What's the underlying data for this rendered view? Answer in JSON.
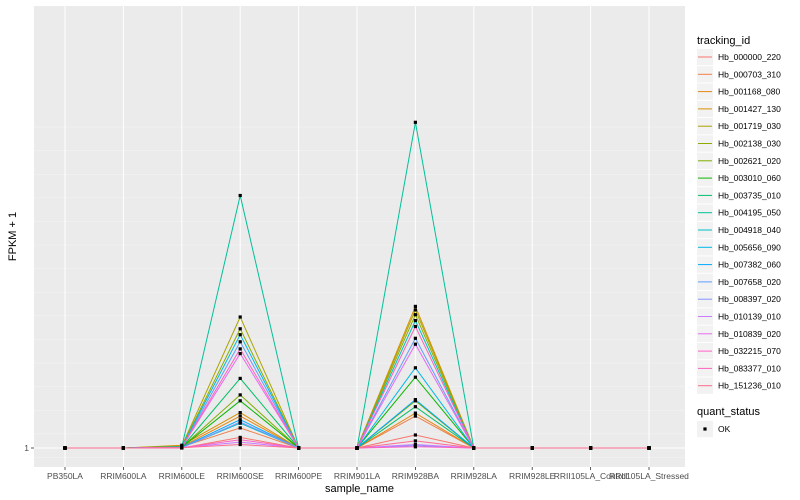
{
  "chart_data": {
    "type": "line",
    "title": "",
    "xlabel": "sample_name",
    "ylabel": "FPKM + 1",
    "y_tick_labels": [
      {
        "value": 1,
        "label": "1"
      }
    ],
    "ylim": [
      0.6,
      15.2
    ],
    "categories": [
      "PB350LA",
      "RRIM600LA",
      "RRIM600LE",
      "RRIM600SE",
      "RRIM600PE",
      "RRIM901LA",
      "RRIM928BA",
      "RRIM928LA",
      "RRIM928LE",
      "RRII105LA_Control",
      "RRII105LA_Stressed"
    ],
    "grid": true,
    "legend_position": "right",
    "legend_title": "tracking_id",
    "shape_legend": {
      "title": "quant_status",
      "entries": [
        "OK"
      ]
    },
    "series": [
      {
        "name": "Hb_000000_220",
        "color": "#F8766D",
        "values": [
          1,
          1,
          1.0,
          1.45,
          1,
          1,
          1.55,
          1,
          1,
          1,
          1
        ]
      },
      {
        "name": "Hb_000703_310",
        "color": "#F07E4A",
        "values": [
          1,
          1,
          1.05,
          1.85,
          1,
          1,
          2.35,
          1,
          1,
          1,
          1
        ]
      },
      {
        "name": "Hb_001168_080",
        "color": "#E68613",
        "values": [
          1,
          1,
          1.06,
          2.35,
          1,
          1,
          2.48,
          1,
          1,
          1,
          1
        ]
      },
      {
        "name": "Hb_001427_130",
        "color": "#D89000",
        "values": [
          1,
          1,
          1.12,
          2.5,
          1,
          1,
          7.0,
          1,
          1,
          1,
          1
        ]
      },
      {
        "name": "Hb_001719_030",
        "color": "#ABA300",
        "values": [
          1,
          1,
          1.08,
          6.55,
          1,
          1,
          6.85,
          1,
          1,
          1,
          1
        ]
      },
      {
        "name": "Hb_002138_030",
        "color": "#8EAB00",
        "values": [
          1,
          1,
          1.06,
          6.05,
          1,
          1,
          6.65,
          1,
          1,
          1,
          1
        ]
      },
      {
        "name": "Hb_002621_020",
        "color": "#7CAE00",
        "values": [
          1,
          1,
          1.04,
          3.25,
          1,
          1,
          3.0,
          1,
          1,
          1,
          1
        ]
      },
      {
        "name": "Hb_003010_060",
        "color": "#0CB702",
        "values": [
          1,
          1,
          1.03,
          3.0,
          1,
          1,
          4.0,
          1,
          1,
          1,
          1
        ]
      },
      {
        "name": "Hb_003735_010",
        "color": "#00BE67",
        "values": [
          1,
          1,
          1.02,
          3.95,
          1,
          1,
          2.75,
          1,
          1,
          1,
          1
        ]
      },
      {
        "name": "Hb_004195_050",
        "color": "#00C19A",
        "values": [
          1,
          1,
          1.05,
          11.7,
          1,
          1,
          14.8,
          1,
          1,
          1,
          1
        ]
      },
      {
        "name": "Hb_004918_040",
        "color": "#00BFC4",
        "values": [
          1,
          1,
          1.02,
          2.05,
          1,
          1,
          6.4,
          1,
          1,
          1,
          1
        ]
      },
      {
        "name": "Hb_005656_090",
        "color": "#00B8E7",
        "values": [
          1,
          1,
          1.04,
          5.8,
          1,
          1,
          4.4,
          1,
          1,
          1,
          1
        ]
      },
      {
        "name": "Hb_007382_060",
        "color": "#00A9FF",
        "values": [
          1,
          1,
          1.03,
          2.2,
          1,
          1,
          3.05,
          1,
          1,
          1,
          1
        ]
      },
      {
        "name": "Hb_007658_020",
        "color": "#619CFF",
        "values": [
          1,
          1,
          1.02,
          5.5,
          1,
          1,
          5.65,
          1,
          1,
          1,
          1
        ]
      },
      {
        "name": "Hb_008397_020",
        "color": "#8494FF",
        "values": [
          1,
          1,
          1.01,
          2.1,
          1,
          1,
          1.1,
          1,
          1,
          1,
          1
        ]
      },
      {
        "name": "Hb_010139_010",
        "color": "#C77CFF",
        "values": [
          1,
          1,
          1.01,
          1.25,
          1,
          1,
          1.15,
          1,
          1,
          1,
          1
        ]
      },
      {
        "name": "Hb_010839_020",
        "color": "#E76BF3",
        "values": [
          1,
          1,
          1.02,
          5.0,
          1,
          1,
          5.4,
          1,
          1,
          1,
          1
        ]
      },
      {
        "name": "Hb_032215_070",
        "color": "#FF61C3",
        "values": [
          1,
          1,
          1.01,
          1.35,
          1,
          1,
          1.05,
          1,
          1,
          1,
          1
        ]
      },
      {
        "name": "Hb_083377_010",
        "color": "#FF62BC",
        "values": [
          1,
          1,
          1.02,
          5.2,
          1,
          1,
          6.15,
          1,
          1,
          1,
          1
        ]
      },
      {
        "name": "Hb_151236_010",
        "color": "#FF6C91",
        "values": [
          1,
          1,
          1.01,
          1.15,
          1,
          1,
          1.3,
          1,
          1,
          1,
          1
        ]
      }
    ]
  }
}
